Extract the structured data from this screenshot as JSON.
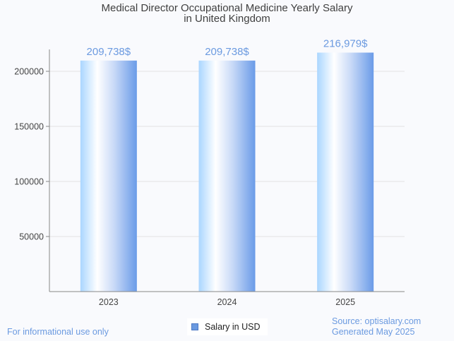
{
  "chart_data": {
    "type": "bar",
    "title": "Medical Director Occupational Medicine Yearly Salary",
    "subtitle": "in United Kingdom",
    "categories": [
      "2023",
      "2024",
      "2025"
    ],
    "series": [
      {
        "name": "Salary in USD",
        "values": [
          209738,
          209738,
          216979
        ]
      }
    ],
    "data_labels": [
      "209,738$",
      "209,738$",
      "216,979$"
    ],
    "xlabel": "",
    "ylabel": "",
    "ylim": [
      0,
      220000
    ],
    "yticks": [
      50000,
      100000,
      150000,
      200000
    ],
    "ytick_labels": [
      "50000",
      "100000",
      "150000",
      "200000"
    ],
    "grid": true,
    "legend": "bottom-center",
    "colors": {
      "bar_light": "#b3dbff",
      "bar_dark": "#6a9be8",
      "label": "#6b9ae0"
    }
  },
  "footer": {
    "disclaimer": "For informational use only",
    "source": "Source: optisalary.com",
    "generated": "Generated May 2025"
  },
  "legend": {
    "label": "Salary in USD"
  }
}
